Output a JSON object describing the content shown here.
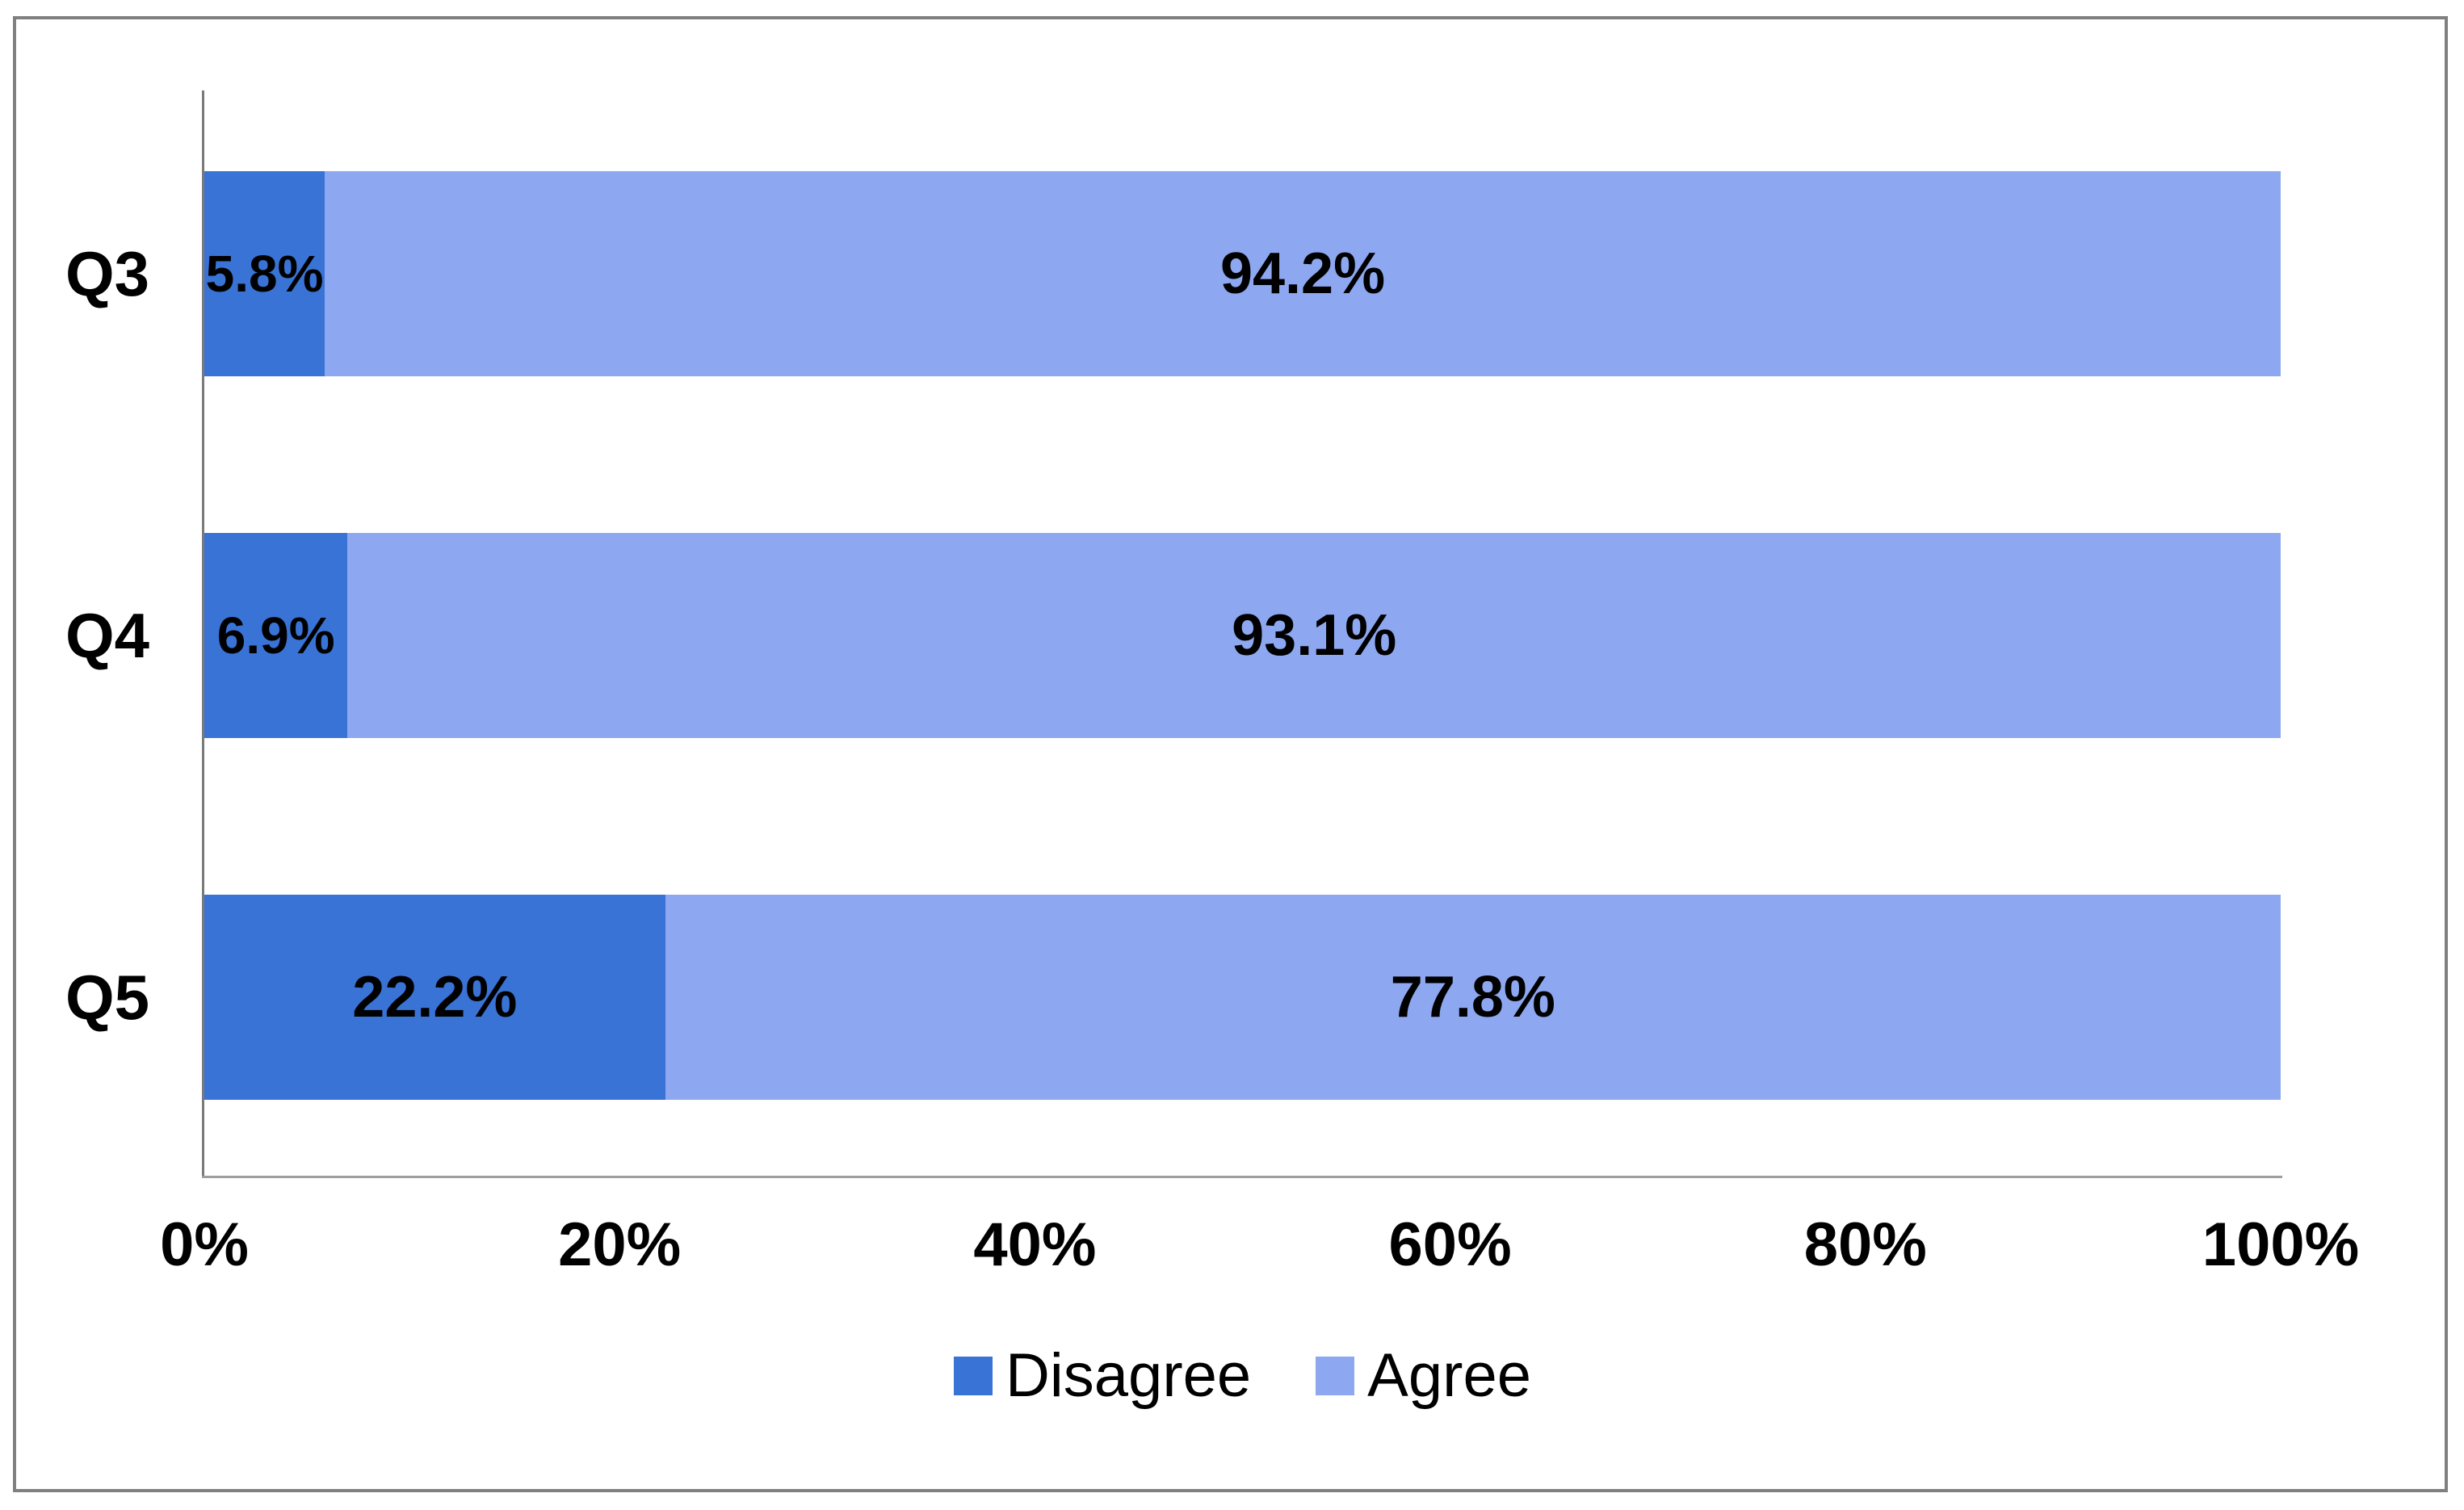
{
  "chart_data": {
    "type": "bar",
    "orientation": "horizontal",
    "stacked": true,
    "title": "",
    "categories": [
      "Q3",
      "Q4",
      "Q5"
    ],
    "series": [
      {
        "name": "Disagree",
        "color": "#3973D6",
        "values": [
          5.8,
          6.9,
          22.2
        ],
        "labels": [
          "5.8%",
          "6.9%",
          "22.2%"
        ]
      },
      {
        "name": "Agree",
        "color": "#8DA8F0",
        "values": [
          94.2,
          93.1,
          77.8
        ],
        "labels": [
          "94.2%",
          "93.1%",
          "77.8%"
        ]
      }
    ],
    "xlim": [
      0,
      100
    ],
    "x_tick_labels": [
      "0%",
      "20%",
      "40%",
      "60%",
      "80%",
      "100%"
    ],
    "grid": false,
    "legend_position": "bottom"
  },
  "colors": {
    "disagree": "#3973D6",
    "agree": "#8DA8F0",
    "frame_border": "#808080",
    "y_axis": "#7A7A7A",
    "x_axis": "#9E9E9E",
    "label_text": "#000000"
  }
}
